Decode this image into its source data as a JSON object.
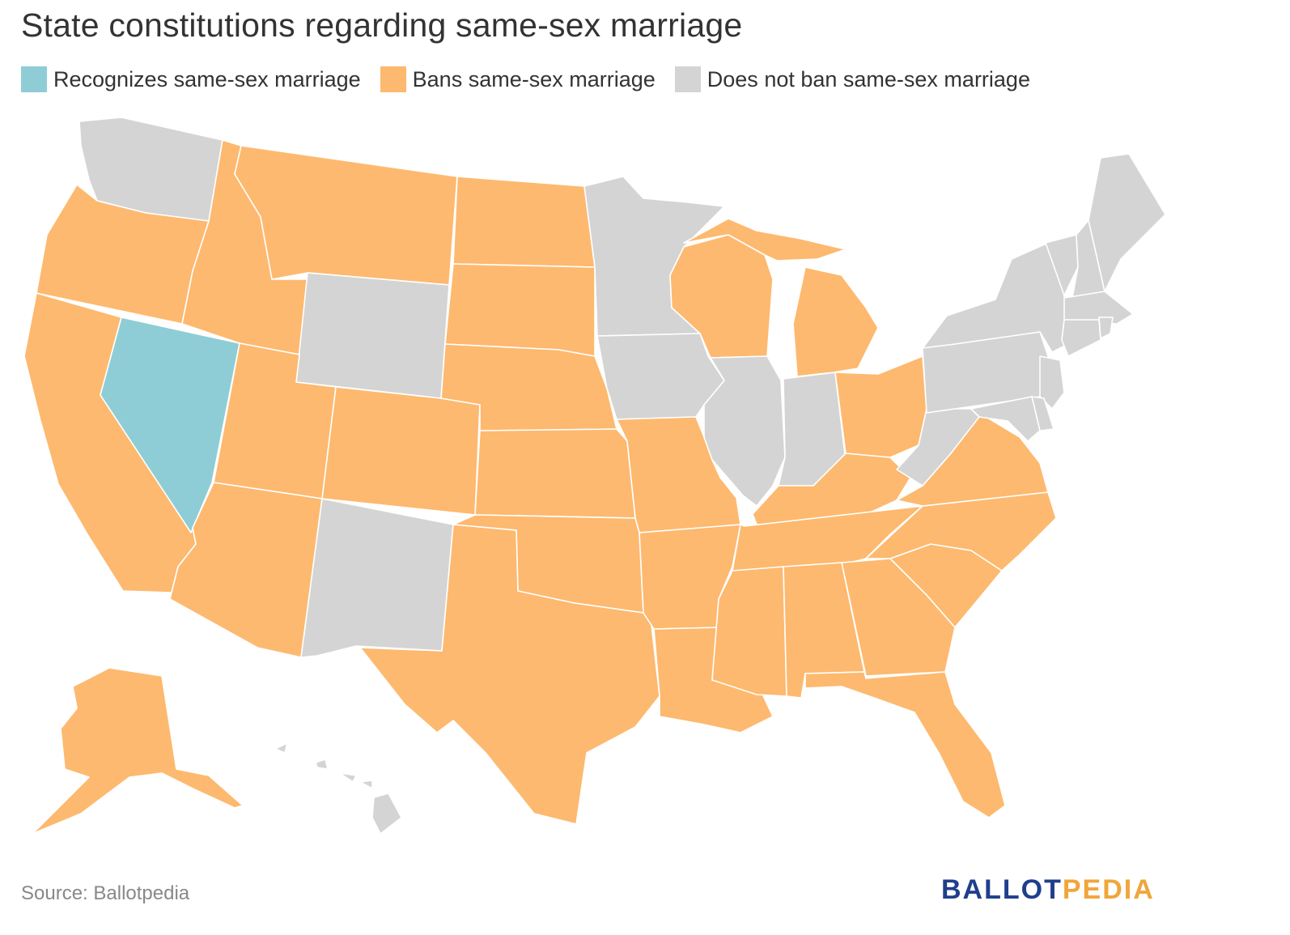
{
  "title": "State constitutions regarding same-sex marriage",
  "colors": {
    "recognizes": "#8ecdd6",
    "bans": "#fdb96f",
    "does_not_ban": "#d4d4d4"
  },
  "legend": [
    {
      "key": "recognizes",
      "label": "Recognizes same-sex marriage"
    },
    {
      "key": "bans",
      "label": "Bans same-sex marriage"
    },
    {
      "key": "does_not_ban",
      "label": "Does not ban same-sex marriage"
    }
  ],
  "states": {
    "WA": "does_not_ban",
    "OR": "bans",
    "CA": "bans",
    "NV": "recognizes",
    "ID": "bans",
    "MT": "bans",
    "WY": "does_not_ban",
    "UT": "bans",
    "AZ": "bans",
    "CO": "bans",
    "NM": "does_not_ban",
    "ND": "bans",
    "SD": "bans",
    "NE": "bans",
    "KS": "bans",
    "OK": "bans",
    "TX": "bans",
    "MN": "does_not_ban",
    "IA": "does_not_ban",
    "MO": "bans",
    "AR": "bans",
    "LA": "bans",
    "WI": "bans",
    "IL": "does_not_ban",
    "MI": "bans",
    "IN": "does_not_ban",
    "OH": "bans",
    "KY": "bans",
    "TN": "bans",
    "MS": "bans",
    "AL": "bans",
    "GA": "bans",
    "FL": "bans",
    "SC": "bans",
    "NC": "bans",
    "VA": "bans",
    "WV": "does_not_ban",
    "PA": "does_not_ban",
    "NY": "does_not_ban",
    "VT": "does_not_ban",
    "NH": "does_not_ban",
    "ME": "does_not_ban",
    "MA": "does_not_ban",
    "CT": "does_not_ban",
    "RI": "does_not_ban",
    "NJ": "does_not_ban",
    "DE": "does_not_ban",
    "MD": "does_not_ban",
    "AK": "bans",
    "HI": "does_not_ban"
  },
  "source": "Source: Ballotpedia",
  "brand": {
    "part1": "BALLOT",
    "part2": "PEDIA"
  }
}
